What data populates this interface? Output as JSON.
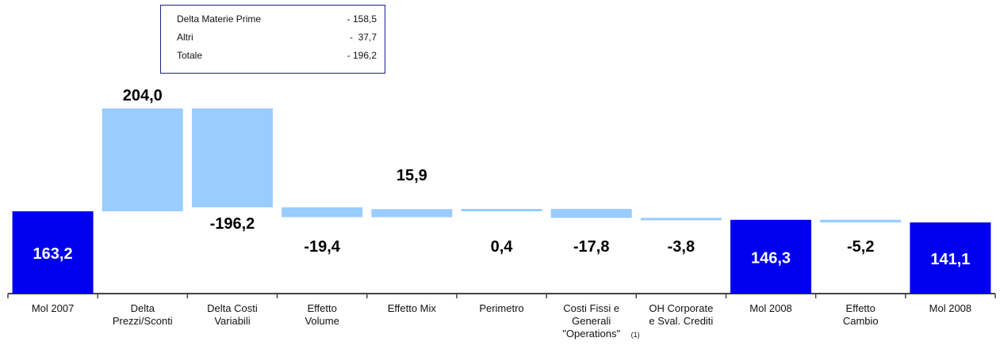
{
  "legend_table": {
    "rows": [
      {
        "label": "Delta Materie Prime",
        "value": "- 158,5"
      },
      {
        "label": "Altri",
        "value": "-  37,7"
      },
      {
        "label": "Totale",
        "value": "- 196,2"
      }
    ]
  },
  "chart_data": {
    "type": "bar",
    "subtype": "waterfall",
    "title": "",
    "xlabel": "",
    "ylabel": "",
    "categories": [
      "Mol 2007",
      "Delta Prezzi/Sconti",
      "Delta Costi Variabili",
      "Effetto Volume",
      "Effetto Mix",
      "Perimetro",
      "Costi Fissi e Generali \"Operations\"",
      "OH Corporate e Sval. Crediti",
      "Mol 2008",
      "Effetto Cambio",
      "Mol 2008"
    ],
    "tick_label_lines": [
      [
        "Mol 2007"
      ],
      [
        "Delta",
        "Prezzi/Sconti"
      ],
      [
        "Delta Costi",
        "Variabili"
      ],
      [
        "Effetto",
        "Volume"
      ],
      [
        "Effetto Mix"
      ],
      [
        "Perimetro"
      ],
      [
        "Costi Fissi e",
        "Generali",
        "\"Operations\""
      ],
      [
        "OH Corporate",
        "e Sval. Crediti"
      ],
      [
        "Mol 2008"
      ],
      [
        "Effetto",
        "Cambio"
      ],
      [
        "Mol 2008"
      ]
    ],
    "footnote_marker": "(1)",
    "values": [
      163.2,
      204.0,
      -196.2,
      -19.4,
      15.9,
      0.4,
      -17.8,
      -3.8,
      146.3,
      -5.2,
      141.1
    ],
    "bar_kinds": [
      "total",
      "delta",
      "delta",
      "delta",
      "delta",
      "delta",
      "delta",
      "delta",
      "total",
      "delta",
      "total"
    ],
    "data_labels": [
      "163,2",
      "204,0",
      "-196,2",
      "-19,4",
      "15,9",
      "0,4",
      "-17,8",
      "-3,8",
      "146,3",
      "-5,2",
      "141,1"
    ],
    "colors": {
      "total": "#0000ee",
      "delta": "#99ccff",
      "total_label": "#ffffff",
      "delta_label": "#000000",
      "axis": "#444444"
    },
    "grid": false,
    "ylim": [
      0,
      370
    ]
  }
}
